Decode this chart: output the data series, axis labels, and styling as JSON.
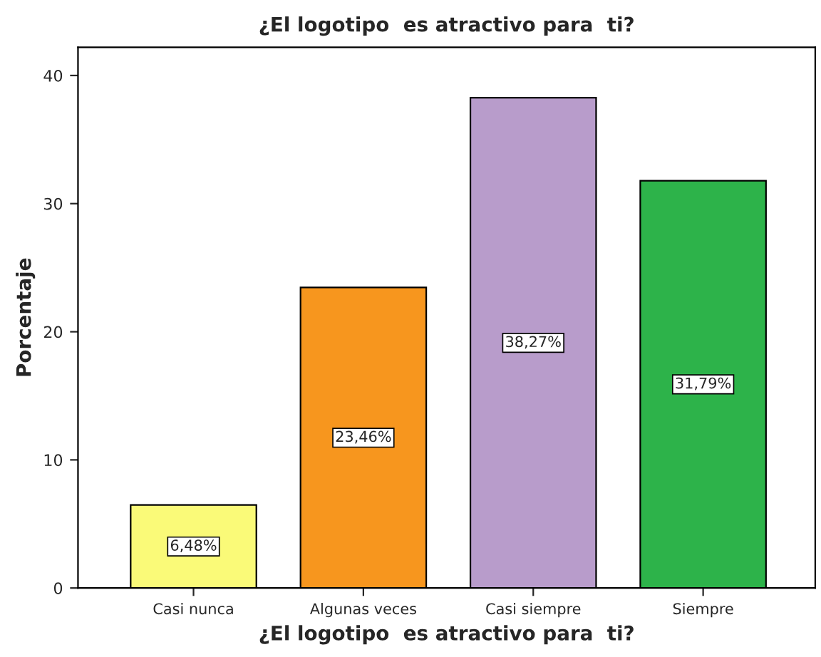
{
  "chart_data": {
    "type": "bar",
    "title": "¿El logotipo  es atractivo para  ti?",
    "xlabel": "¿El logotipo  es atractivo para  ti?",
    "ylabel": "Porcentaje",
    "categories": [
      "Casi nunca",
      "Algunas veces",
      "Casi siempre",
      "Siempre"
    ],
    "values": [
      6.48,
      23.46,
      38.27,
      31.79
    ],
    "value_labels": [
      "6,48%",
      "23,46%",
      "38,27%",
      "31,79%"
    ],
    "colors": [
      "#fafa78",
      "#f7961e",
      "#b89ccb",
      "#2db34a"
    ],
    "ylim": [
      0,
      42.2
    ],
    "yticks": [
      0,
      10,
      20,
      30,
      40
    ],
    "grid": false,
    "legend": false
  }
}
